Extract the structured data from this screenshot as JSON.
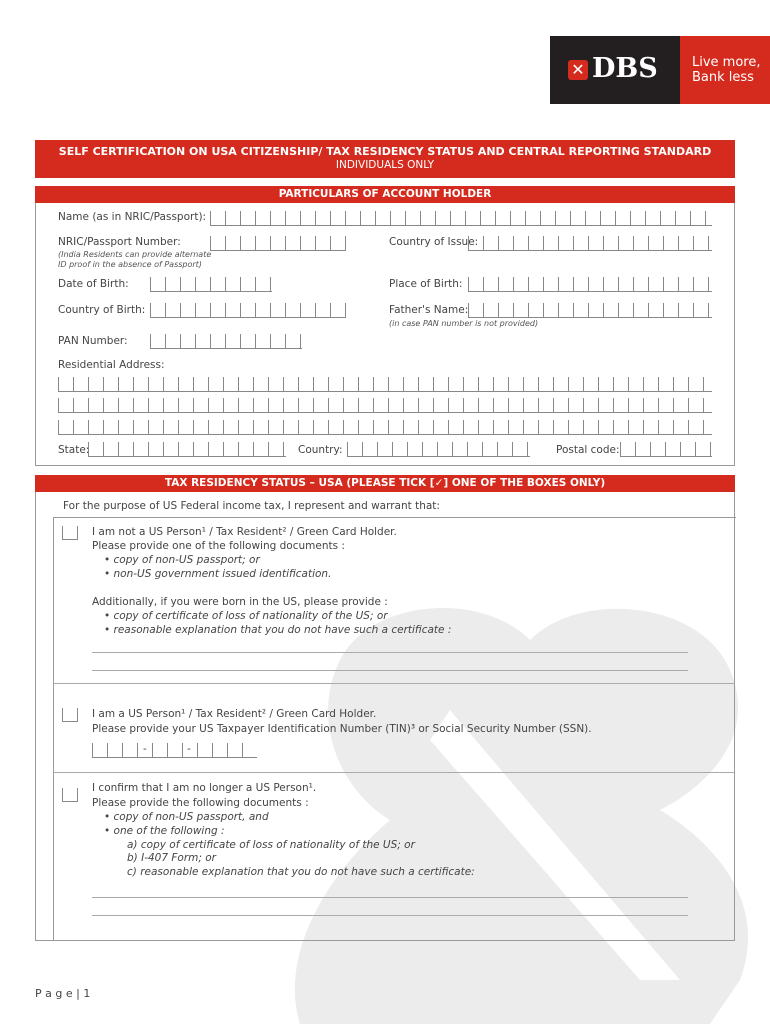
{
  "logo": {
    "brand": "DBS",
    "tagline_1": "Live more,",
    "tagline_2": "Bank less",
    "colors": {
      "black": "#231f20",
      "red": "#d52b1e"
    }
  },
  "title": {
    "main": "SELF CERTIFICATION ON USA CITIZENSHIP/ TAX RESIDENCY STATUS AND CENTRAL REPORTING STANDARD",
    "sub": "INDIVIDUALS ONLY"
  },
  "particulars": {
    "header": "PARTICULARS OF ACCOUNT HOLDER",
    "name": "Name (as in NRIC/Passport):",
    "nric": "NRIC/Passport Number:",
    "nric_note_1": "(India Residents can provide alternate",
    "nric_note_2": "ID proof in the absence of Passport)",
    "country_issue": "Country of Issue:",
    "dob": "Date of Birth:",
    "place_birth": "Place of Birth:",
    "country_birth": "Country of Birth:",
    "father": "Father's Name:",
    "father_note": "(in case PAN number is not provided)",
    "pan": "PAN Number:",
    "address": "Residential Address:",
    "state": "State:",
    "country": "Country:",
    "postal": "Postal code:"
  },
  "tax": {
    "header": "TAX RESIDENCY STATUS – USA (PLEASE TICK [✓] ONE OF THE BOXES ONLY)",
    "intro": "For the purpose of US Federal income tax, I represent and warrant that:",
    "opt1": {
      "l1": "I am not a US Person¹ / Tax Resident² / Green Card Holder.",
      "l2": "Please provide one of the following documents :",
      "b1": "•  copy of non-US passport; or",
      "b2": "•  non-US government issued identification.",
      "l3": "Additionally, if you were born in the US, please provide :",
      "b3": "•  copy of certificate of loss of nationality of the US; or",
      "b4": "•  reasonable explanation that you do not have such a certificate :"
    },
    "opt2": {
      "l1": "I am a US Person¹ / Tax Resident² / Green Card Holder.",
      "l2": "Please provide your US Taxpayer Identification Number (TIN)³ or Social Security Number (SSN).",
      "dash": "-"
    },
    "opt3": {
      "l1": "I confirm that I am no longer a US Person¹.",
      "l2": "Please provide the following documents :",
      "b1": "•  copy of non-US passport, and",
      "b2": "•  one of the following :",
      "a": "a) copy of certificate of loss of nationality of the US; or",
      "b": "b) I-407 Form; or",
      "c": "c) reasonable explanation that you do not have such a certificate:"
    }
  },
  "footer": {
    "page": "P a g e | 1"
  }
}
